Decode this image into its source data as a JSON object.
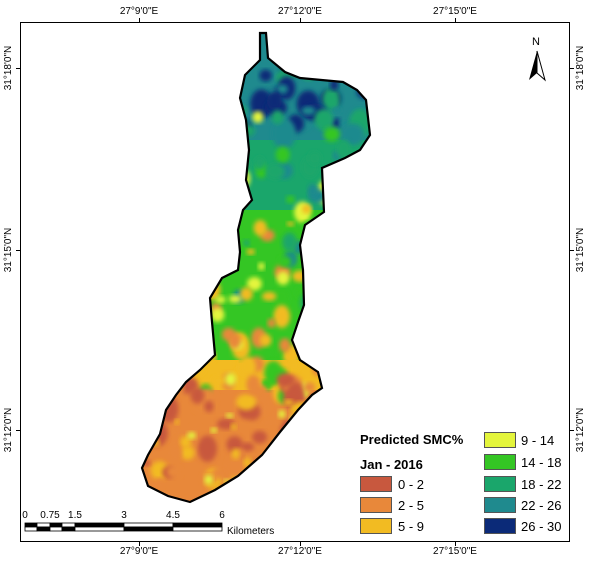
{
  "axes": {
    "top_labels": [
      "27°9'0\"E",
      "27°12'0\"E",
      "27°15'0\"E"
    ],
    "bottom_labels": [
      "27°9'0\"E",
      "27°12'0\"E",
      "27°15'0\"E"
    ],
    "left_labels": [
      "31°18'0\"N",
      "31°15'0\"N",
      "31°12'0\"N"
    ],
    "right_labels": [
      "31°18'0\"N",
      "31°15'0\"N",
      "31°12'0\"N"
    ]
  },
  "legend": {
    "title": "Predicted SMC%",
    "subtitle": "Jan - 2016",
    "classes": [
      {
        "label": "0 - 2",
        "color": "#c8583e"
      },
      {
        "label": "2 - 5",
        "color": "#e8883a"
      },
      {
        "label": "5 - 9",
        "color": "#f2bb22"
      },
      {
        "label": "9 - 14",
        "color": "#e4f53c"
      },
      {
        "label": "14 - 18",
        "color": "#34c624"
      },
      {
        "label": "18 - 22",
        "color": "#1aa66b"
      },
      {
        "label": "22 - 26",
        "color": "#1f8a8e"
      },
      {
        "label": "26 - 30",
        "color": "#0b2a78"
      }
    ]
  },
  "scale_bar": {
    "ticks": [
      "0",
      "0.75",
      "1.5",
      "3",
      "4.5",
      "6"
    ],
    "unit": "Kilometers"
  },
  "north_arrow": {
    "letter": "N",
    "icon": "north-arrow-icon"
  }
}
